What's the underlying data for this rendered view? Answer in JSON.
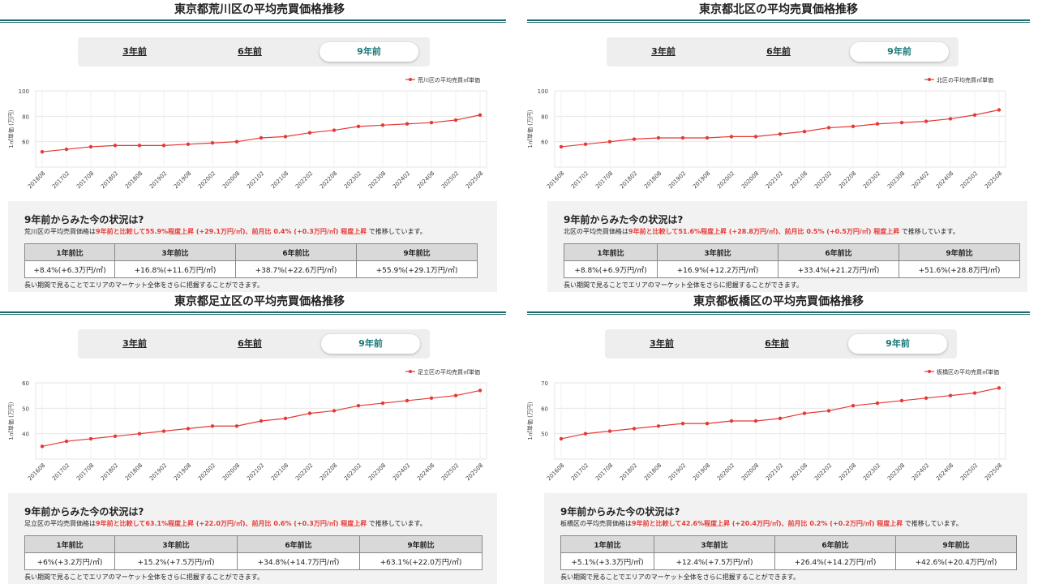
{
  "panels": [
    {
      "id": "arakawa",
      "title": "東京都荒川区の平均売買価格推移",
      "tabs": [
        "3年前",
        "6年前",
        "9年前"
      ],
      "active_tab": 2,
      "status_heading": "9年前からみた今の状況は?",
      "status_prefix": "荒川区の平均売買価格は",
      "status_red": "9年前と比較して55.9%程度上昇 (+29.1万円/㎡)、前月比 0.4% (+0.3万円/㎡) 程度上昇",
      "status_suffix": " で推移しています。",
      "table_headers": [
        "1年前比",
        "3年前比",
        "6年前比",
        "9年前比"
      ],
      "table_values": [
        "+8.4%(+6.3万円/㎡)",
        "+16.8%(+11.6万円/㎡)",
        "+38.7%(+22.6万円/㎡)",
        "+55.9%(+29.1万円/㎡)"
      ],
      "note": "長い期間で見ることでエリアのマーケット全体をさらに把握することができます。",
      "chart_data": {
        "type": "line",
        "ylabel": "1㎡単価 (万円)",
        "legend": "荒川区の平均売買㎡単価",
        "legend_position": "top-right",
        "grid": true,
        "categories": [
          "201608",
          "201702",
          "201708",
          "201802",
          "201808",
          "201902",
          "201908",
          "202002",
          "202008",
          "202102",
          "202108",
          "202202",
          "202208",
          "202302",
          "202308",
          "202402",
          "202408",
          "202502",
          "202508"
        ],
        "values": [
          52,
          54,
          56,
          57,
          57,
          57,
          58,
          59,
          60,
          63,
          64,
          67,
          69,
          72,
          73,
          74,
          75,
          77,
          81
        ],
        "ylim": [
          40,
          100
        ],
        "yticks": [
          60,
          80,
          100
        ],
        "color": "#e53935"
      }
    },
    {
      "id": "kita",
      "title": "東京都北区の平均売買価格推移",
      "tabs": [
        "3年前",
        "6年前",
        "9年前"
      ],
      "active_tab": 2,
      "status_heading": "9年前からみた今の状況は?",
      "status_prefix": "北区の平均売買価格は",
      "status_red": "9年前と比較して51.6%程度上昇 (+28.8万円/㎡)、前月比 0.5% (+0.5万円/㎡) 程度上昇",
      "status_suffix": " で推移しています。",
      "table_headers": [
        "1年前比",
        "3年前比",
        "6年前比",
        "9年前比"
      ],
      "table_values": [
        "+8.8%(+6.9万円/㎡)",
        "+16.9%(+12.2万円/㎡)",
        "+33.4%(+21.2万円/㎡)",
        "+51.6%(+28.8万円/㎡)"
      ],
      "note": "長い期間で見ることでエリアのマーケット全体をさらに把握することができます。",
      "chart_data": {
        "type": "line",
        "ylabel": "1㎡単価 (万円)",
        "legend": "北区の平均売買㎡単価",
        "legend_position": "top-right",
        "grid": true,
        "categories": [
          "201608",
          "201702",
          "201708",
          "201802",
          "201808",
          "201902",
          "201908",
          "202002",
          "202008",
          "202102",
          "202108",
          "202202",
          "202208",
          "202302",
          "202308",
          "202402",
          "202408",
          "202502",
          "202508"
        ],
        "values": [
          56,
          58,
          60,
          62,
          63,
          63,
          63,
          64,
          64,
          66,
          68,
          71,
          72,
          74,
          75,
          76,
          78,
          81,
          85
        ],
        "ylim": [
          40,
          100
        ],
        "yticks": [
          60,
          80,
          100
        ],
        "color": "#e53935"
      }
    },
    {
      "id": "adachi",
      "title": "東京都足立区の平均売買価格推移",
      "tabs": [
        "3年前",
        "6年前",
        "9年前"
      ],
      "active_tab": 2,
      "status_heading": "9年前からみた今の状況は?",
      "status_prefix": "足立区の平均売買価格は",
      "status_red": "9年前と比較して63.1%程度上昇 (+22.0万円/㎡)、前月比 0.6% (+0.3万円/㎡) 程度上昇",
      "status_suffix": " で推移しています。",
      "table_headers": [
        "1年前比",
        "3年前比",
        "6年前比",
        "9年前比"
      ],
      "table_values": [
        "+6%(+3.2万円/㎡)",
        "+15.2%(+7.5万円/㎡)",
        "+34.8%(+14.7万円/㎡)",
        "+63.1%(+22.0万円/㎡)"
      ],
      "note": "長い期間で見ることでエリアのマーケット全体をさらに把握することができます。",
      "chart_data": {
        "type": "line",
        "ylabel": "1㎡単価 (万円)",
        "legend": "足立区の平均売買㎡単価",
        "legend_position": "top-right",
        "grid": true,
        "categories": [
          "201608",
          "201702",
          "201708",
          "201802",
          "201808",
          "201902",
          "201908",
          "202002",
          "202008",
          "202102",
          "202108",
          "202202",
          "202208",
          "202302",
          "202308",
          "202402",
          "202408",
          "202502",
          "202508"
        ],
        "values": [
          35,
          37,
          38,
          39,
          40,
          41,
          42,
          43,
          43,
          45,
          46,
          48,
          49,
          51,
          52,
          53,
          54,
          55,
          57
        ],
        "ylim": [
          30,
          60
        ],
        "yticks": [
          40,
          50,
          60
        ],
        "color": "#e53935"
      }
    },
    {
      "id": "itabashi",
      "title": "東京都板橋区の平均売買価格推移",
      "tabs": [
        "3年前",
        "6年前",
        "9年前"
      ],
      "active_tab": 2,
      "status_heading": "9年前からみた今の状況は?",
      "status_prefix": "板橋区の平均売買価格は",
      "status_red": "9年前と比較して42.6%程度上昇 (+20.4万円/㎡)、前月比 0.2% (+0.2万円/㎡) 程度上昇",
      "status_suffix": " で推移しています。",
      "table_headers": [
        "1年前比",
        "3年前比",
        "6年前比",
        "9年前比"
      ],
      "table_values": [
        "+5.1%(+3.3万円/㎡)",
        "+12.4%(+7.5万円/㎡)",
        "+26.4%(+14.2万円/㎡)",
        "+42.6%(+20.4万円/㎡)"
      ],
      "note": "長い期間で見ることでエリアのマーケット全体をさらに把握することができます。",
      "chart_data": {
        "type": "line",
        "ylabel": "1㎡単価 (万円)",
        "legend": "板橋区の平均売買㎡単価",
        "legend_position": "top-right",
        "grid": true,
        "categories": [
          "201608",
          "201702",
          "201708",
          "201802",
          "201808",
          "201902",
          "201908",
          "202002",
          "202008",
          "202102",
          "202108",
          "202202",
          "202208",
          "202302",
          "202308",
          "202402",
          "202408",
          "202502",
          "202508"
        ],
        "values": [
          48,
          50,
          51,
          52,
          53,
          54,
          54,
          55,
          55,
          56,
          58,
          59,
          61,
          62,
          63,
          64,
          65,
          66,
          68
        ],
        "ylim": [
          40,
          70
        ],
        "yticks": [
          50,
          60,
          70
        ],
        "color": "#e53935"
      }
    }
  ]
}
